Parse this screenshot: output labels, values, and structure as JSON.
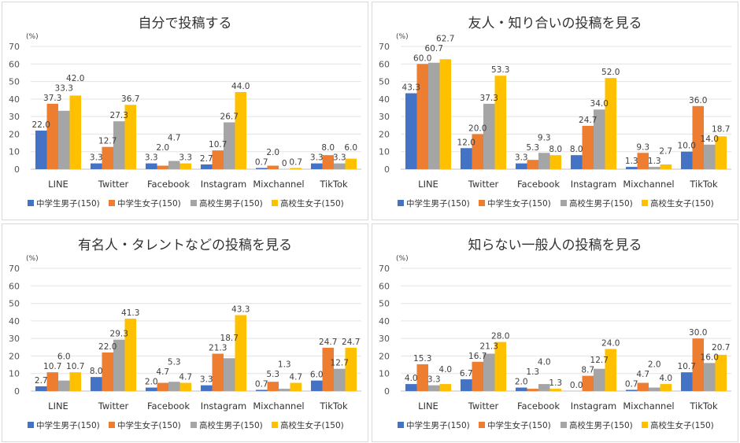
{
  "chart_data": [
    {
      "type": "bar",
      "title": "自分で投稿する",
      "ylabel": "(%)",
      "ylim": [
        0,
        70
      ],
      "yticks": [
        0,
        10,
        20,
        30,
        40,
        50,
        60,
        70
      ],
      "grid": true,
      "legend_position": "bottom",
      "categories": [
        "LINE",
        "Twitter",
        "Facebook",
        "Instagram",
        "Mixchannel",
        "TikTok"
      ],
      "series": [
        {
          "name": "中学生男子(150)",
          "color": "#4472c4",
          "values": [
            22.0,
            3.3,
            3.3,
            2.7,
            0.7,
            3.3
          ]
        },
        {
          "name": "中学生女子(150)",
          "color": "#ed7d31",
          "values": [
            37.3,
            12.7,
            2.0,
            10.7,
            2.0,
            8.0
          ]
        },
        {
          "name": "高校生男子(150)",
          "color": "#a5a5a5",
          "values": [
            33.3,
            27.3,
            4.7,
            26.7,
            0,
            3.3
          ]
        },
        {
          "name": "高校生女子(150)",
          "color": "#ffc000",
          "values": [
            42.0,
            36.7,
            3.3,
            44.0,
            0.7,
            6.0
          ]
        }
      ]
    },
    {
      "type": "bar",
      "title": "友人・知り合いの投稿を見る",
      "ylabel": "(%)",
      "ylim": [
        0,
        70
      ],
      "yticks": [
        0,
        10,
        20,
        30,
        40,
        50,
        60,
        70
      ],
      "grid": true,
      "legend_position": "bottom",
      "categories": [
        "LINE",
        "Twitter",
        "Facebook",
        "Instagram",
        "Mixchannel",
        "TikTok"
      ],
      "series": [
        {
          "name": "中学生男子(150)",
          "color": "#4472c4",
          "values": [
            43.3,
            12.0,
            3.3,
            8.0,
            1.3,
            10.0
          ]
        },
        {
          "name": "中学生女子(150)",
          "color": "#ed7d31",
          "values": [
            60.0,
            20.0,
            5.3,
            24.7,
            9.3,
            36.0
          ]
        },
        {
          "name": "高校生男子(150)",
          "color": "#a5a5a5",
          "values": [
            60.7,
            37.3,
            9.3,
            34.0,
            1.3,
            14.0
          ]
        },
        {
          "name": "高校生女子(150)",
          "color": "#ffc000",
          "values": [
            62.7,
            53.3,
            8.0,
            52.0,
            2.7,
            18.7
          ]
        }
      ]
    },
    {
      "type": "bar",
      "title": "有名人・タレントなどの投稿を見る",
      "ylabel": "(%)",
      "ylim": [
        0,
        70
      ],
      "yticks": [
        0,
        10,
        20,
        30,
        40,
        50,
        60,
        70
      ],
      "grid": true,
      "legend_position": "bottom",
      "categories": [
        "LINE",
        "Twitter",
        "Facebook",
        "Instagram",
        "Mixchannel",
        "TikTok"
      ],
      "series": [
        {
          "name": "中学生男子(150)",
          "color": "#4472c4",
          "values": [
            2.7,
            8.0,
            2.0,
            3.3,
            0.7,
            6.0
          ]
        },
        {
          "name": "中学生女子(150)",
          "color": "#ed7d31",
          "values": [
            10.7,
            22.0,
            4.7,
            21.3,
            5.3,
            24.7
          ]
        },
        {
          "name": "高校生男子(150)",
          "color": "#a5a5a5",
          "values": [
            6.0,
            29.3,
            5.3,
            18.7,
            1.3,
            12.7
          ]
        },
        {
          "name": "高校生女子(150)",
          "color": "#ffc000",
          "values": [
            10.7,
            41.3,
            4.7,
            43.3,
            4.7,
            24.7
          ]
        }
      ]
    },
    {
      "type": "bar",
      "title": "知らない一般人の投稿を見る",
      "ylabel": "(%)",
      "ylim": [
        0,
        70
      ],
      "yticks": [
        0,
        10,
        20,
        30,
        40,
        50,
        60,
        70
      ],
      "grid": true,
      "legend_position": "bottom",
      "categories": [
        "LINE",
        "Twitter",
        "Facebook",
        "Instagram",
        "Mixchannel",
        "TikTok"
      ],
      "series": [
        {
          "name": "中学生男子(150)",
          "color": "#4472c4",
          "values": [
            4.0,
            6.7,
            2.0,
            0.0,
            0.7,
            10.7
          ]
        },
        {
          "name": "中学生女子(150)",
          "color": "#ed7d31",
          "values": [
            15.3,
            16.7,
            1.3,
            8.7,
            4.7,
            30.0
          ]
        },
        {
          "name": "高校生男子(150)",
          "color": "#a5a5a5",
          "values": [
            3.3,
            21.3,
            4.0,
            12.7,
            2.0,
            16.0
          ]
        },
        {
          "name": "高校生女子(150)",
          "color": "#ffc000",
          "values": [
            4.0,
            28.0,
            1.3,
            24.0,
            4.0,
            20.7
          ]
        }
      ]
    }
  ]
}
